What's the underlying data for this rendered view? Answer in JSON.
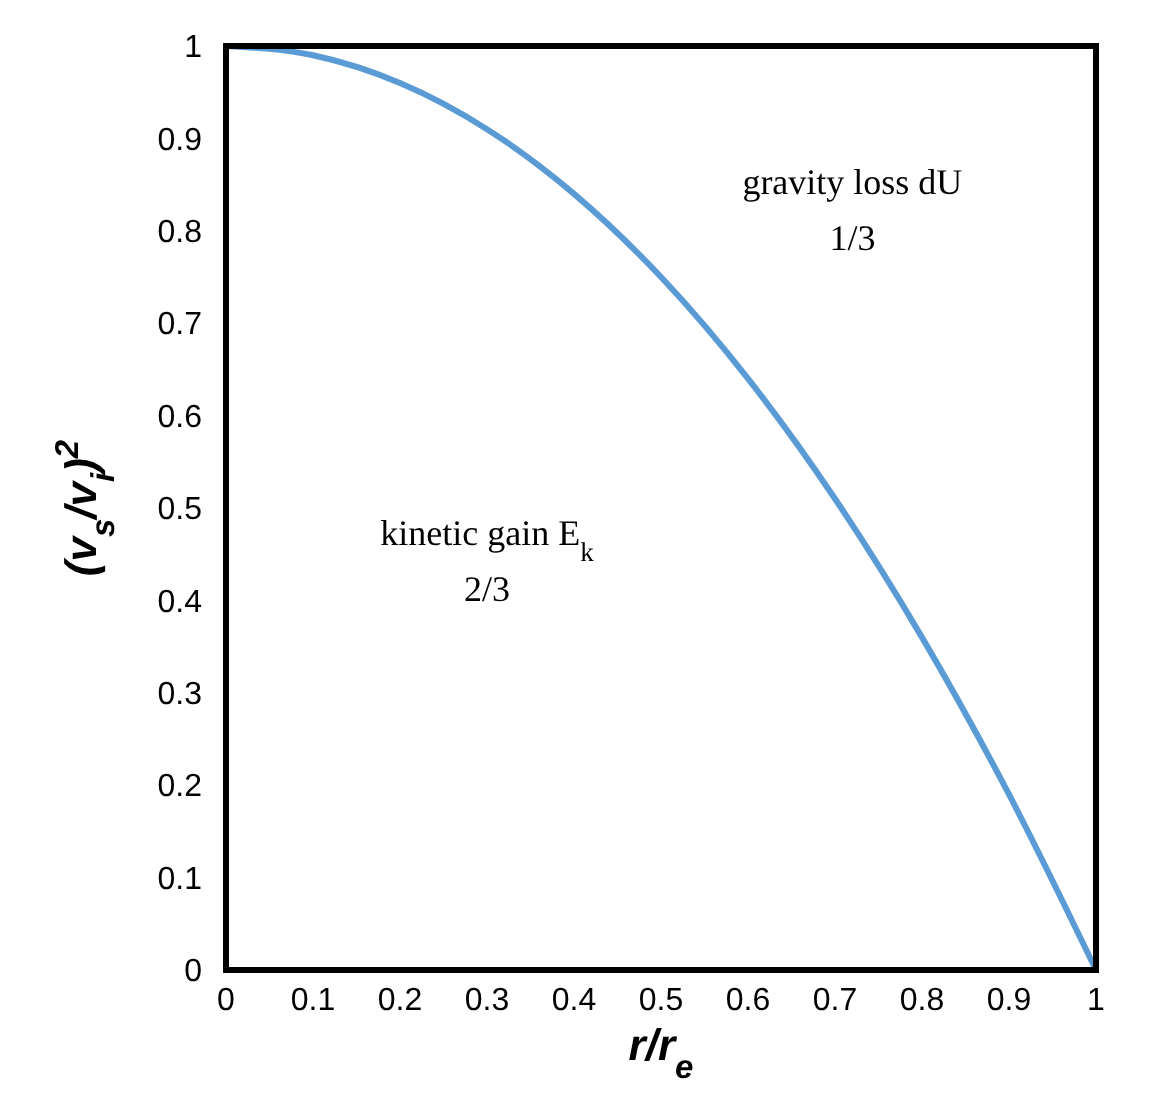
{
  "chart_data": {
    "type": "line",
    "xlabel": "r/r$_{e}$",
    "ylabel": "(v$_{s}$/v$_{i}$)$^{2}$",
    "x": [
      0,
      0.1,
      0.2,
      0.3,
      0.4,
      0.5,
      0.6,
      0.7,
      0.8,
      0.9,
      1
    ],
    "series": [
      {
        "color": "#5b9bd5",
        "values": [
          1,
          0.99,
          0.96,
          0.91,
          0.84,
          0.75,
          0.64,
          0.51,
          0.36,
          0.19,
          0
        ]
      }
    ],
    "xlim": [
      0,
      1
    ],
    "ylim": [
      0,
      1
    ],
    "xticks": [
      0,
      0.1,
      0.2,
      0.3,
      0.4,
      0.5,
      0.6,
      0.7,
      0.8,
      0.9,
      1
    ],
    "yticks": [
      0,
      0.1,
      0.2,
      0.3,
      0.4,
      0.5,
      0.6,
      0.7,
      0.8,
      0.9,
      1
    ],
    "grid": false,
    "marker": "none",
    "line_style": "solid",
    "annotations": [
      "gravity loss dU\n1/3",
      "kinetic gain E$_{k}$\n2/3"
    ]
  }
}
